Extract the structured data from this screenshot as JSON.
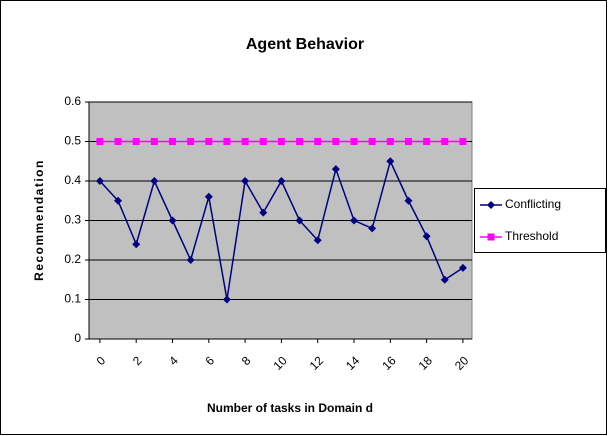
{
  "chart_data": {
    "type": "line",
    "title": "Agent Behavior",
    "x_label": "Number of tasks in Domain d",
    "y_label": "Recommendation",
    "x": [
      0,
      1,
      2,
      3,
      4,
      5,
      6,
      7,
      8,
      9,
      10,
      11,
      12,
      13,
      14,
      15,
      16,
      17,
      18,
      19,
      20
    ],
    "series": [
      {
        "name": "Conflicting",
        "color": "#000080",
        "marker": "diamond",
        "values": [
          0.4,
          0.35,
          0.24,
          0.4,
          0.3,
          0.2,
          0.36,
          0.1,
          0.4,
          0.32,
          0.4,
          0.3,
          0.25,
          0.43,
          0.3,
          0.28,
          0.45,
          0.35,
          0.26,
          0.15,
          0.18
        ]
      },
      {
        "name": "Threshold",
        "color": "#ff00ff",
        "marker": "square",
        "values": [
          0.5,
          0.5,
          0.5,
          0.5,
          0.5,
          0.5,
          0.5,
          0.5,
          0.5,
          0.5,
          0.5,
          0.5,
          0.5,
          0.5,
          0.5,
          0.5,
          0.5,
          0.5,
          0.5,
          0.5,
          0.5
        ]
      }
    ],
    "xlim": [
      -0.6,
      20.5
    ],
    "xticks": [
      0,
      2,
      4,
      6,
      8,
      10,
      12,
      14,
      16,
      18,
      20
    ],
    "ylim": [
      0,
      0.6
    ],
    "yticks": [
      0,
      0.1,
      0.2,
      0.3,
      0.4,
      0.5,
      0.6
    ],
    "grid": true,
    "legend": "right",
    "plot_background": "#c0c0c0"
  }
}
